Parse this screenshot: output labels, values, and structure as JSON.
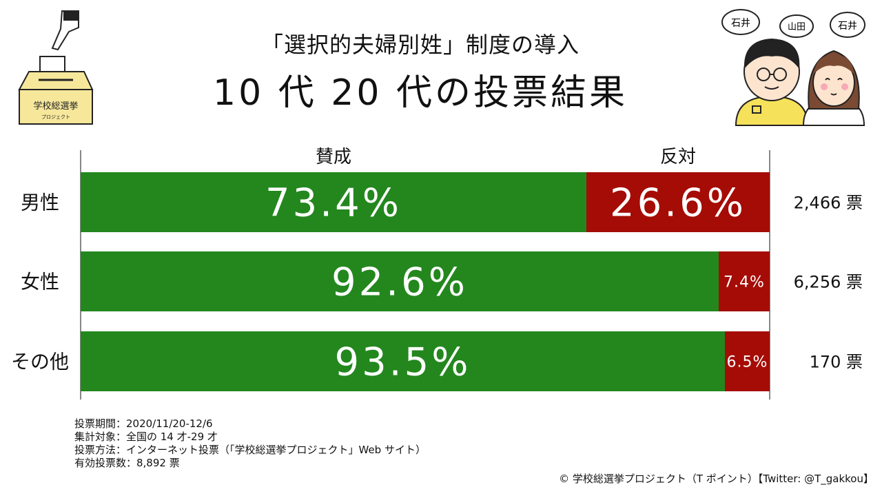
{
  "title_line1": "「選択的夫婦別姓」制度の導入",
  "title_line2": "10 代 20 代の投票結果",
  "ballot_box": {
    "label": "学校総選挙",
    "sublabel": "プロジェクト"
  },
  "characters": [
    "石井",
    "山田",
    "石井"
  ],
  "chart_data": {
    "type": "bar",
    "orientation": "horizontal",
    "stacked": true,
    "normalized": true,
    "categories": [
      "男性",
      "女性",
      "その他"
    ],
    "series": [
      {
        "name": "賛成",
        "values": [
          73.4,
          92.6,
          93.5
        ],
        "labels": [
          "73.4%",
          "92.6%",
          "93.5%"
        ],
        "color": "#23871e"
      },
      {
        "name": "反対",
        "values": [
          26.6,
          7.4,
          6.5
        ],
        "labels": [
          "26.6%",
          "7.4%",
          "6.5%"
        ],
        "color": "#a50c05"
      }
    ],
    "totals": [
      "2,466 票",
      "6,256 票",
      "170 票"
    ],
    "xlim": [
      0,
      100
    ]
  },
  "notes": [
    "投票期間：2020/11/20-12/6",
    "集計対象：全国の 14 才-29 才",
    "投票方法：インターネット投票（「学校総選挙プロジェクト」Web サイト）",
    "有効投票数：8,892 票"
  ],
  "copyright": "© 学校総選挙プロジェクト（T ポイント）【Twitter: @T_gakkou】"
}
